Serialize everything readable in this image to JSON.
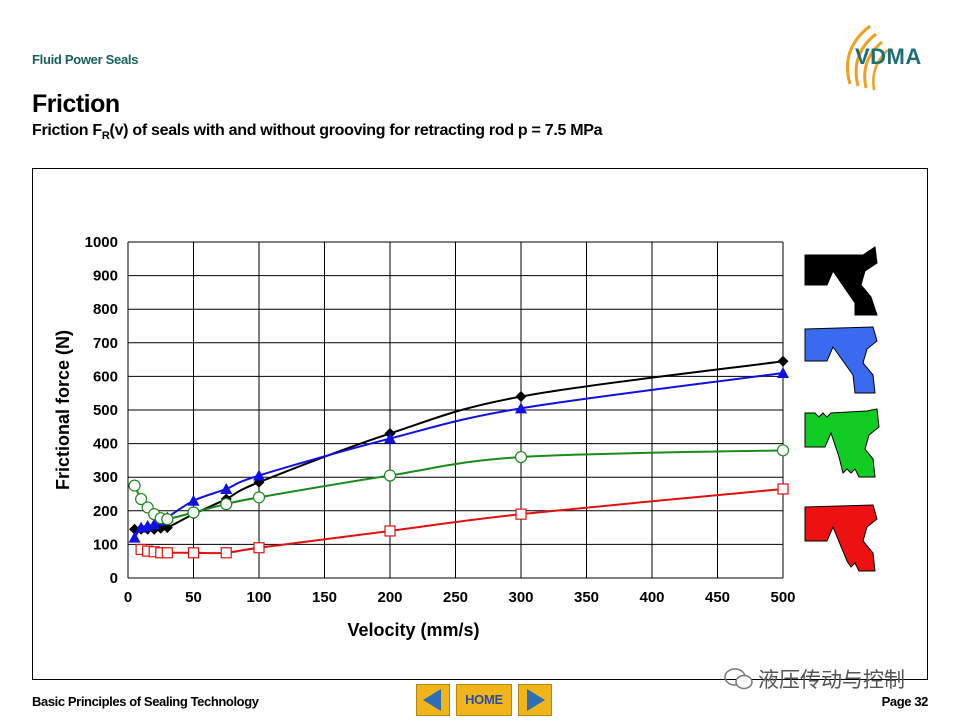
{
  "header": {
    "section": "Fluid Power Seals",
    "logo_text": "VDMA",
    "title": "Friction",
    "subtitle_prefix": "Friction F",
    "subtitle_sub": "R",
    "subtitle_suffix": "(v) of seals with and without grooving for retracting rod p = 7.5 MPa"
  },
  "footer": {
    "left": "Basic Principles of Sealing Technology",
    "home": "HOME",
    "page": "Page 32",
    "watermark": "液压传动与控制"
  },
  "colors": {
    "accent": "#f1b51c",
    "header_teal": "#1a5e60",
    "logo_teal": "#1c6f73",
    "logo_orange": "#f0a020"
  },
  "icons": [
    "logo-arcs",
    "arrow-left-icon",
    "arrow-right-icon",
    "wechat-icon"
  ],
  "chart_data": {
    "type": "line",
    "xlabel": "Velocity (mm/s)",
    "ylabel": "Frictional force (N)",
    "xlim": [
      0,
      500
    ],
    "ylim": [
      0,
      1000
    ],
    "x_ticks": [
      "0",
      "50",
      "100",
      "150",
      "200",
      "250",
      "300",
      "350",
      "400",
      "450",
      "500"
    ],
    "y_ticks": [
      "0",
      "100",
      "200",
      "300",
      "400",
      "500",
      "600",
      "700",
      "800",
      "900",
      "1000"
    ],
    "grid": true,
    "legend": "seal profile shapes at right, color-coded",
    "series": [
      {
        "color": "#000000",
        "marker": "diamond-filled",
        "points": [
          [
            5,
            145
          ],
          [
            10,
            145
          ],
          [
            15,
            145
          ],
          [
            20,
            145
          ],
          [
            25,
            148
          ],
          [
            30,
            150
          ],
          [
            50,
            190
          ],
          [
            75,
            235
          ],
          [
            100,
            285
          ],
          [
            200,
            430
          ],
          [
            300,
            540
          ],
          [
            500,
            645
          ]
        ]
      },
      {
        "color": "#1010e0",
        "marker": "triangle-filled",
        "points": [
          [
            5,
            120
          ],
          [
            10,
            150
          ],
          [
            15,
            155
          ],
          [
            20,
            160
          ],
          [
            25,
            170
          ],
          [
            30,
            180
          ],
          [
            50,
            230
          ],
          [
            75,
            265
          ],
          [
            100,
            305
          ],
          [
            200,
            415
          ],
          [
            300,
            505
          ],
          [
            500,
            610
          ]
        ]
      },
      {
        "color": "#1a8a1a",
        "marker": "circle-open",
        "points": [
          [
            5,
            275
          ],
          [
            10,
            235
          ],
          [
            15,
            210
          ],
          [
            20,
            190
          ],
          [
            25,
            178
          ],
          [
            30,
            175
          ],
          [
            50,
            195
          ],
          [
            75,
            220
          ],
          [
            100,
            240
          ],
          [
            200,
            305
          ],
          [
            300,
            360
          ],
          [
            500,
            380
          ]
        ]
      },
      {
        "color": "#e01010",
        "marker": "square-open",
        "points": [
          [
            10,
            85
          ],
          [
            15,
            80
          ],
          [
            20,
            78
          ],
          [
            25,
            75
          ],
          [
            30,
            75
          ],
          [
            50,
            75
          ],
          [
            75,
            75
          ],
          [
            100,
            90
          ],
          [
            200,
            140
          ],
          [
            300,
            190
          ],
          [
            500,
            265
          ]
        ]
      }
    ]
  }
}
